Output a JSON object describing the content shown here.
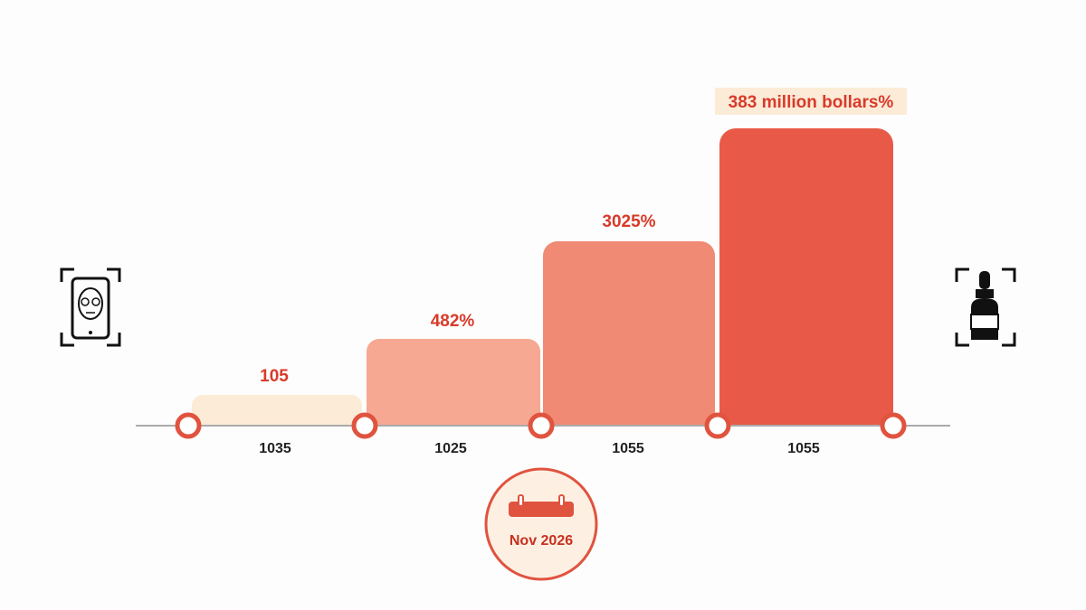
{
  "bars": [
    {
      "label": "105",
      "category": "1035"
    },
    {
      "label": "482%",
      "category": "1025"
    },
    {
      "label": "3025%",
      "category": "1055"
    },
    {
      "label": "383 million bollars%",
      "category": "1055"
    }
  ],
  "date": "Nov 2026"
}
